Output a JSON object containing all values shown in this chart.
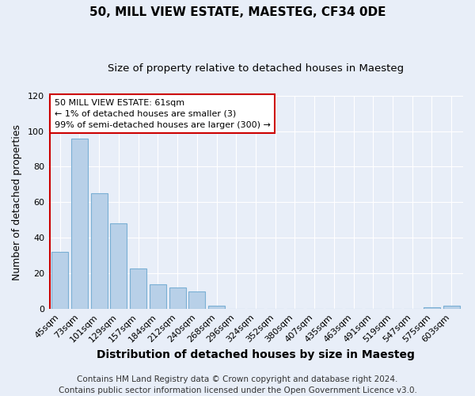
{
  "title": "50, MILL VIEW ESTATE, MAESTEG, CF34 0DE",
  "subtitle": "Size of property relative to detached houses in Maesteg",
  "xlabel": "Distribution of detached houses by size in Maesteg",
  "ylabel": "Number of detached properties",
  "bar_labels": [
    "45sqm",
    "73sqm",
    "101sqm",
    "129sqm",
    "157sqm",
    "184sqm",
    "212sqm",
    "240sqm",
    "268sqm",
    "296sqm",
    "324sqm",
    "352sqm",
    "380sqm",
    "407sqm",
    "435sqm",
    "463sqm",
    "491sqm",
    "519sqm",
    "547sqm",
    "575sqm",
    "603sqm"
  ],
  "bar_values": [
    32,
    96,
    65,
    48,
    23,
    14,
    12,
    10,
    2,
    0,
    0,
    0,
    0,
    0,
    0,
    0,
    0,
    0,
    0,
    1,
    2
  ],
  "bar_color": "#b8d0e8",
  "bar_edge_color": "#7aafd4",
  "ylim": [
    0,
    120
  ],
  "yticks": [
    0,
    20,
    40,
    60,
    80,
    100,
    120
  ],
  "annotation_title": "50 MILL VIEW ESTATE: 61sqm",
  "annotation_line1": "← 1% of detached houses are smaller (3)",
  "annotation_line2": "99% of semi-detached houses are larger (300) →",
  "annotation_box_color": "#ffffff",
  "annotation_box_edge": "#cc0000",
  "property_line_color": "#cc0000",
  "footer_line1": "Contains HM Land Registry data © Crown copyright and database right 2024.",
  "footer_line2": "Contains public sector information licensed under the Open Government Licence v3.0.",
  "background_color": "#e8eef8",
  "grid_color": "#ffffff",
  "title_fontsize": 11,
  "subtitle_fontsize": 9.5,
  "xlabel_fontsize": 10,
  "ylabel_fontsize": 9,
  "tick_fontsize": 8,
  "footer_fontsize": 7.5
}
